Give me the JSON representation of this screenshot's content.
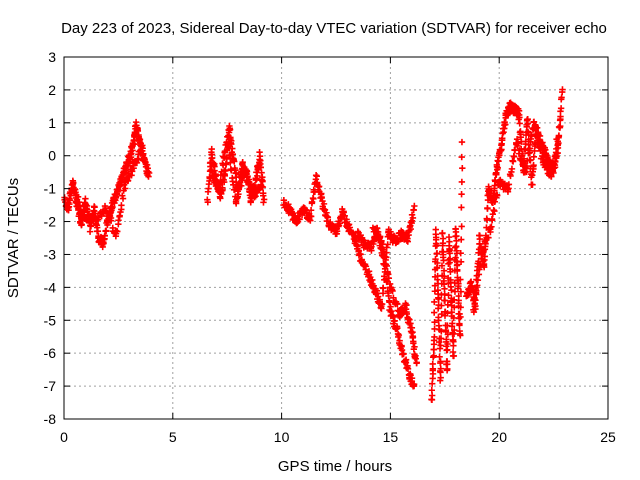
{
  "chart_data": {
    "type": "scatter",
    "title": "Day 223 of 2023, Sidereal Day-to-day VTEC variation (SDTVAR) for receiver echo",
    "xlabel": "GPS time / hours",
    "ylabel": "SDTVAR / TECUs",
    "xlim": [
      0,
      25
    ],
    "ylim": [
      -8,
      3
    ],
    "xticks": [
      "0",
      "5",
      "10",
      "15",
      "20",
      "25"
    ],
    "yticks": [
      "-8",
      "-7",
      "-6",
      "-5",
      "-4",
      "-3",
      "-2",
      "-1",
      "0",
      "1",
      "2",
      "3"
    ],
    "grid": true,
    "marker": "+",
    "marker_color": "#ff0000",
    "series": [
      {
        "x": [
          0,
          0.2,
          0.4,
          0.6,
          0.8,
          1.0,
          1.2,
          1.4,
          1.6,
          1.8,
          2.0,
          2.2,
          2.4,
          2.6,
          2.8,
          3.0,
          3.2,
          3.3,
          3.5,
          3.7,
          3.9
        ],
        "y": [
          -1.3,
          -1.6,
          -0.8,
          -1.5,
          -2.0,
          -1.4,
          -2.2,
          -1.6,
          -2.5,
          -2.7,
          -2.0,
          -1.5,
          -1.2,
          -0.8,
          -0.4,
          -0.1,
          0.4,
          0.9,
          0.5,
          -0.2,
          -0.6
        ]
      },
      {
        "x": [
          0.4,
          0.9,
          1.4,
          1.9,
          2.4,
          2.8,
          3.2,
          3.6
        ],
        "y": [
          -0.9,
          -1.8,
          -2.0,
          -1.6,
          -2.4,
          -0.9,
          -0.3,
          0.2
        ]
      },
      {
        "x": [
          6.6,
          6.8,
          7.0,
          7.2,
          7.4,
          7.6,
          7.8,
          8.0,
          8.2,
          8.4,
          8.6,
          8.8,
          9.0,
          9.2
        ],
        "y": [
          -1.4,
          0.1,
          -0.8,
          -1.2,
          -0.5,
          0.9,
          -0.2,
          -1.0,
          -0.3,
          -0.6,
          -1.3,
          -0.8,
          0.0,
          -1.4
        ]
      },
      {
        "x": [
          6.7,
          7.1,
          7.5,
          7.9,
          8.3,
          8.7,
          9.1
        ],
        "y": [
          -0.3,
          -1.0,
          0.5,
          -1.4,
          -0.4,
          -1.2,
          -0.8
        ]
      },
      {
        "x": [
          10.1,
          10.4,
          10.7,
          11.0,
          11.3,
          11.6,
          11.9,
          12.2,
          12.5,
          12.8,
          13.1,
          13.4,
          13.7,
          14.0,
          14.3,
          14.6,
          14.9,
          15.2,
          15.5,
          15.8,
          16.1
        ],
        "y": [
          -1.4,
          -1.7,
          -2.0,
          -1.6,
          -1.9,
          -0.7,
          -1.5,
          -2.1,
          -2.3,
          -1.7,
          -2.2,
          -2.6,
          -3.2,
          -3.6,
          -4.1,
          -4.6,
          -2.3,
          -2.6,
          -2.4,
          -2.5,
          -1.6
        ]
      },
      {
        "x": [
          13.5,
          13.8,
          14.1,
          14.4,
          14.7,
          15.0,
          15.3,
          15.6,
          15.9,
          16.1
        ],
        "y": [
          -2.4,
          -2.7,
          -2.8,
          -2.3,
          -3.2,
          -4.7,
          -5.3,
          -6.1,
          -6.7,
          -7.1
        ]
      },
      {
        "x": [
          14.2,
          14.6,
          15.0,
          15.4,
          15.7,
          16.0,
          16.2
        ],
        "y": [
          -2.2,
          -2.6,
          -4.0,
          -4.8,
          -4.6,
          -5.4,
          -6.3
        ]
      },
      {
        "x": [
          16.9,
          17.0,
          17.1,
          17.2,
          17.3,
          17.4,
          17.5,
          17.6,
          17.7,
          17.8,
          17.9,
          18.0,
          18.1,
          18.2,
          18.3
        ],
        "y": [
          -7.5,
          -5.7,
          -2.3,
          -4.3,
          -6.8,
          -2.4,
          -4.5,
          -6.6,
          -2.5,
          -4.4,
          -6.0,
          -2.2,
          -3.8,
          -5.4,
          0.5
        ]
      },
      {
        "x": [
          18.5,
          18.7,
          18.9,
          19.1,
          19.3,
          19.5,
          19.7,
          19.9,
          20.1,
          20.3,
          20.5,
          20.7,
          20.9,
          21.1,
          21.3,
          21.5,
          21.7,
          21.9,
          22.1,
          22.3,
          22.5,
          22.7,
          22.9
        ],
        "y": [
          -4.3,
          -3.9,
          -4.6,
          -2.5,
          -3.4,
          -1.0,
          -1.4,
          -0.4,
          0.3,
          1.2,
          1.5,
          1.4,
          1.3,
          -0.4,
          1.1,
          -0.9,
          0.8,
          0.4,
          0.1,
          -0.2,
          -0.4,
          0.2,
          2.0
        ]
      },
      {
        "x": [
          18.8,
          19.2,
          19.6,
          20.0,
          20.4,
          20.8,
          21.2,
          21.6,
          22.0,
          22.4,
          22.8
        ],
        "y": [
          -4.8,
          -3.0,
          -2.2,
          -0.8,
          -1.0,
          0.5,
          -0.6,
          1.0,
          -0.2,
          -0.6,
          1.0
        ]
      }
    ]
  }
}
